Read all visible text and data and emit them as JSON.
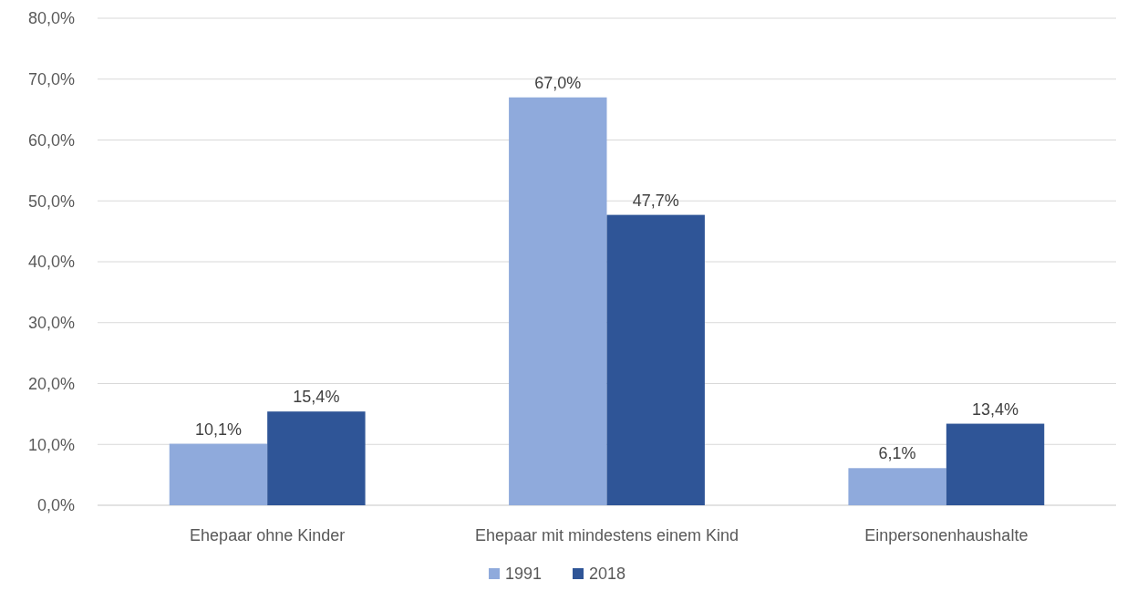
{
  "chart_data": {
    "type": "bar",
    "categories": [
      "Ehepaar ohne Kinder",
      "Ehepaar mit mindestens einem Kind",
      "Einpersonenhaushalte"
    ],
    "series": [
      {
        "name": "1991",
        "color": "#8faadc",
        "values": [
          10.1,
          67.0,
          6.1
        ],
        "value_labels": [
          "10,1%",
          "67,0%",
          "6,1%"
        ]
      },
      {
        "name": "2018",
        "color": "#2f5597",
        "values": [
          15.4,
          47.7,
          13.4
        ],
        "value_labels": [
          "15,4%",
          "47,7%",
          "13,4%"
        ]
      }
    ],
    "ylim": [
      0,
      80
    ],
    "yticks": [
      {
        "value": 0,
        "label": "0,0%"
      },
      {
        "value": 10,
        "label": "10,0%"
      },
      {
        "value": 20,
        "label": "20,0%"
      },
      {
        "value": 30,
        "label": "30,0%"
      },
      {
        "value": 40,
        "label": "40,0%"
      },
      {
        "value": 50,
        "label": "50,0%"
      },
      {
        "value": 60,
        "label": "60,0%"
      },
      {
        "value": 70,
        "label": "70,0%"
      },
      {
        "value": 80,
        "label": "80,0%"
      }
    ],
    "grid": "y",
    "legend": "bottom"
  }
}
